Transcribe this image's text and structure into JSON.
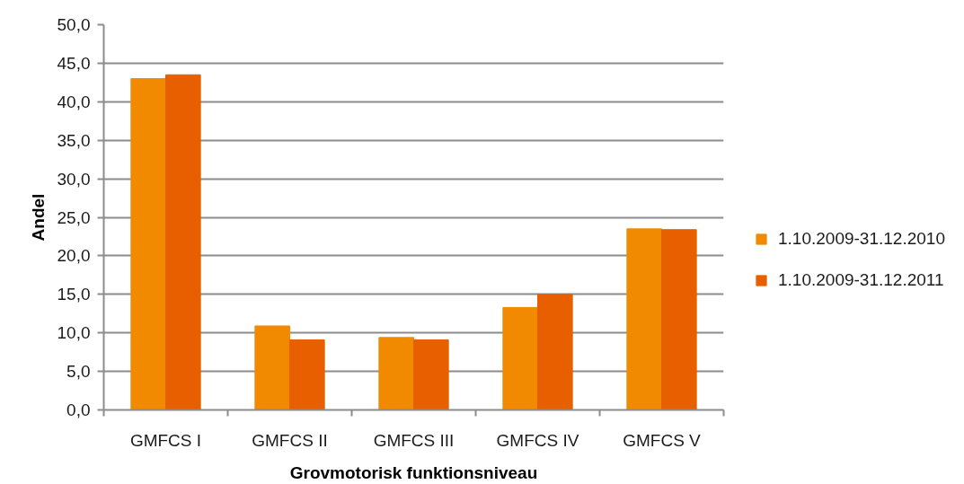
{
  "chart_data": {
    "type": "bar",
    "xlabel": "Grovmotorisk funktionsniveau",
    "ylabel": "Andel",
    "categories": [
      "GMFCS I",
      "GMFCS II",
      "GMFCS III",
      "GMFCS IV",
      "GMFCS V"
    ],
    "series": [
      {
        "name": "1.10.2009-31.12.2010",
        "color": "#f28a00",
        "values": [
          43.0,
          10.9,
          9.4,
          13.3,
          23.5
        ]
      },
      {
        "name": "1.10.2009-31.12.2011",
        "color": "#e85f00",
        "values": [
          43.5,
          9.1,
          9.1,
          15.0,
          23.4
        ]
      }
    ],
    "ylim": [
      0,
      50
    ],
    "yticks": [
      {
        "value": 0,
        "label": "0,0"
      },
      {
        "value": 5,
        "label": "5,0"
      },
      {
        "value": 10,
        "label": "10,0"
      },
      {
        "value": 15,
        "label": "15,0"
      },
      {
        "value": 20,
        "label": "20,0"
      },
      {
        "value": 25,
        "label": "25,0"
      },
      {
        "value": 30,
        "label": "30,0"
      },
      {
        "value": 35,
        "label": "35,0"
      },
      {
        "value": 40,
        "label": "40,0"
      },
      {
        "value": 45,
        "label": "45,0"
      },
      {
        "value": 50,
        "label": "50,0"
      }
    ],
    "grid": "y",
    "legend": "right"
  }
}
